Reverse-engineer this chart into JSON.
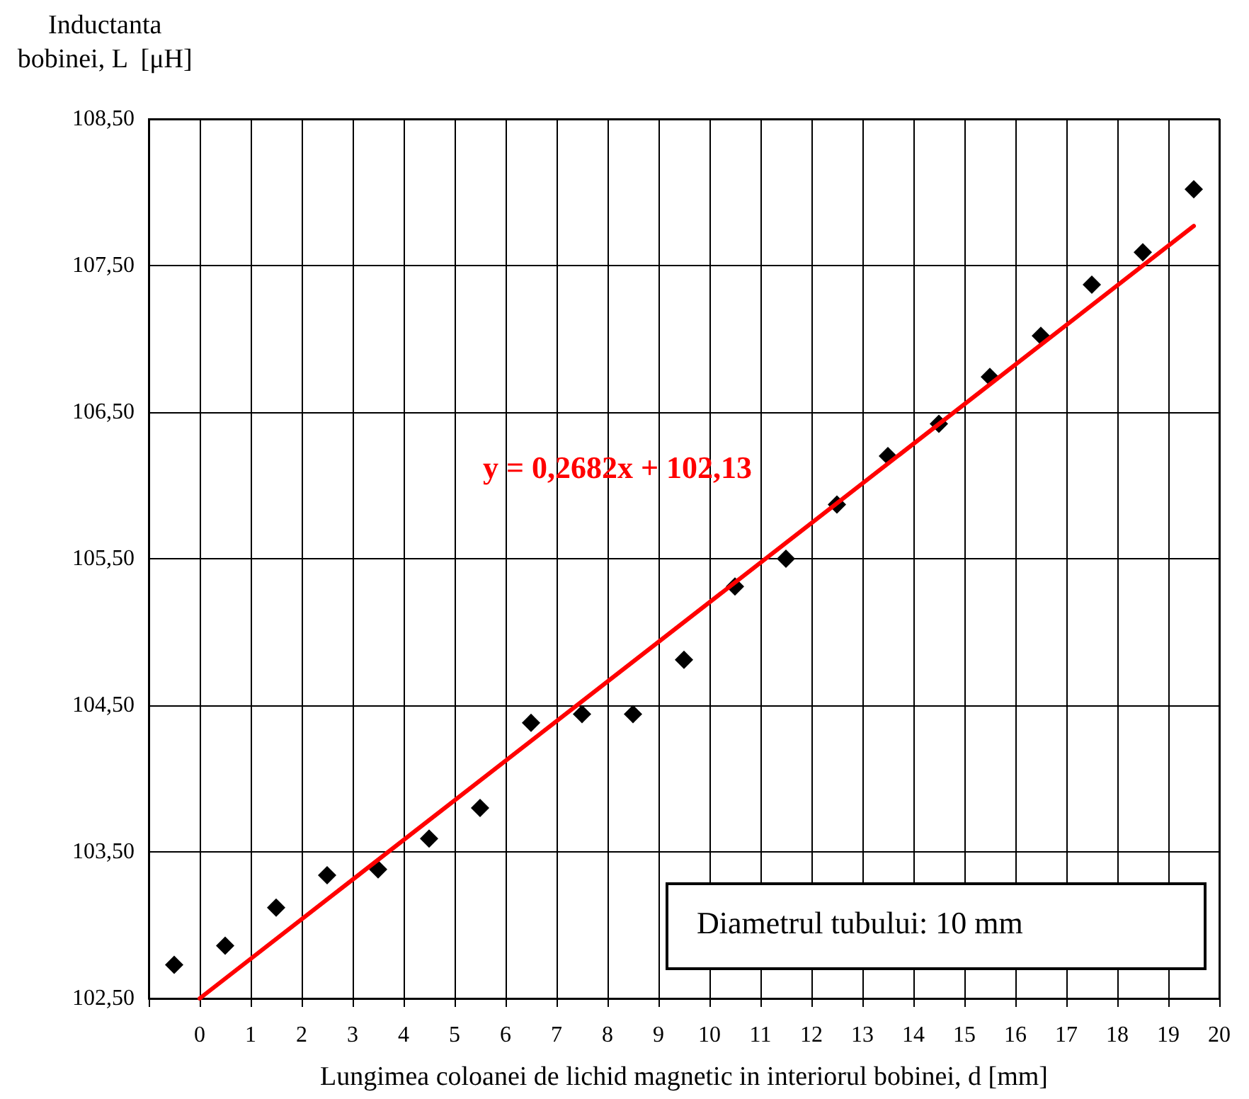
{
  "chart_data": {
    "type": "scatter",
    "ylabel": "Inductanta\nbobinei, L  [μH]",
    "xlabel": "Lungimea coloanei de lichid magnetic in interiorul bobinei, d [mm]",
    "x": [
      -0.5,
      0.5,
      1.5,
      2.5,
      3.5,
      4.5,
      5.5,
      6.5,
      7.5,
      8.5,
      9.5,
      10.5,
      11.5,
      12.5,
      13.5,
      14.5,
      15.5,
      16.5,
      17.5,
      18.5,
      19.5
    ],
    "series": [
      {
        "color": "#000000",
        "marker": "diamond",
        "values": [
          102.73,
          102.86,
          103.12,
          103.34,
          103.38,
          103.59,
          103.8,
          104.38,
          104.44,
          104.44,
          104.81,
          105.31,
          105.5,
          105.87,
          106.2,
          106.42,
          106.74,
          107.02,
          107.37,
          107.59,
          108.02
        ]
      },
      {
        "type": "line",
        "color": "#ff0000",
        "marker": "none",
        "line_style": "solid",
        "x": [
          0,
          19.5
        ],
        "values": [
          102.5,
          107.77
        ]
      }
    ],
    "xlim": [
      -1,
      20
    ],
    "xticks": [
      {
        "value": -1,
        "label": null
      },
      0,
      1,
      2,
      3,
      4,
      5,
      6,
      7,
      8,
      9,
      10,
      11,
      12,
      13,
      14,
      15,
      16,
      17,
      18,
      19,
      20
    ],
    "ylim": [
      102.5,
      108.5
    ],
    "yticks": [
      {
        "value": 102.5,
        "label": "102,50"
      },
      {
        "value": 103.5,
        "label": "103,50"
      },
      {
        "value": 104.5,
        "label": "104,50"
      },
      {
        "value": 105.5,
        "label": "105,50"
      },
      {
        "value": 106.5,
        "label": "106,50"
      },
      {
        "value": 107.5,
        "label": "107,50"
      },
      {
        "value": 108.5,
        "label": "108,50"
      }
    ],
    "annotations": [
      "y = 0,2682x + 102,13",
      "Diametrul tubului: 10 mm"
    ],
    "grid": true
  }
}
